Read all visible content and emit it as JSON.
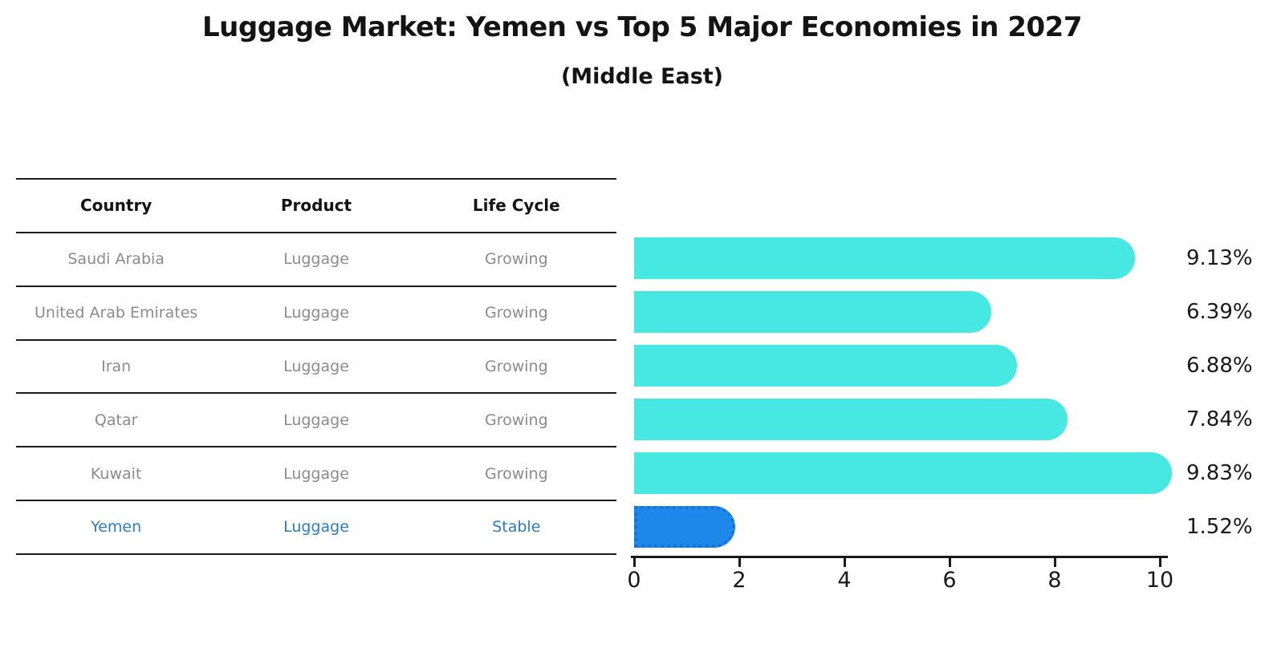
{
  "title": "Luggage Market: Yemen vs Top 5 Major Economies in 2027",
  "subtitle": "(Middle East)",
  "colors": {
    "bar_cyan": "#47e8e1",
    "bar_blue": "#1e87ea",
    "bar_blue_border": "#1573d6",
    "highlight_text_blue": "#2a7cc4",
    "table_text_gray": "#8b8b8b",
    "heading_text": "#141414",
    "rule_line": "#1c1c1c"
  },
  "table": {
    "headers": [
      "Country",
      "Product",
      "Life Cycle"
    ],
    "rows": [
      {
        "country": "Saudi Arabia",
        "product": "Luggage",
        "life_cycle": "Growing",
        "highlighted": false
      },
      {
        "country": "United Arab Emirates",
        "product": "Luggage",
        "life_cycle": "Growing",
        "highlighted": false
      },
      {
        "country": "Iran",
        "product": "Luggage",
        "life_cycle": "Growing",
        "highlighted": false
      },
      {
        "country": "Qatar",
        "product": "Luggage",
        "life_cycle": "Growing",
        "highlighted": false
      },
      {
        "country": "Kuwait",
        "product": "Luggage",
        "life_cycle": "Growing",
        "highlighted": false
      },
      {
        "country": "Yemen",
        "product": "Luggage",
        "life_cycle": "Stable",
        "highlighted": true
      }
    ]
  },
  "chart_data": {
    "type": "bar",
    "orientation": "horizontal",
    "title": "Luggage Market: Yemen vs Top 5 Major Economies in 2027",
    "subtitle": "(Middle East)",
    "categories": [
      "Saudi Arabia",
      "United Arab Emirates",
      "Iran",
      "Qatar",
      "Kuwait",
      "Yemen"
    ],
    "values": [
      9.13,
      6.39,
      6.88,
      7.84,
      9.83,
      1.52
    ],
    "value_labels": [
      "9.13%",
      "6.39%",
      "6.88%",
      "7.84%",
      "9.83%",
      "1.52%"
    ],
    "highlighted_category": "Yemen",
    "xlim": [
      0,
      10
    ],
    "x_ticks": [
      "0",
      "2",
      "4",
      "6",
      "8",
      "10"
    ],
    "grid": false,
    "legend": false
  }
}
